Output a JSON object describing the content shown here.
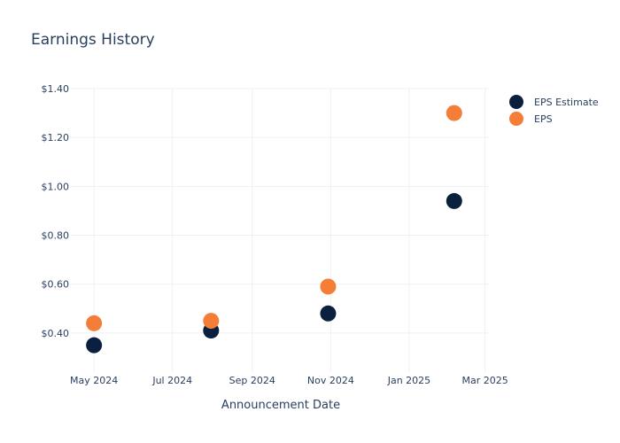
{
  "chart_data": {
    "type": "scatter",
    "title": "Earnings History",
    "xlabel": "Announcement Date",
    "ylabel": "",
    "x_ticks": [
      "May 2024",
      "Jul 2024",
      "Sep 2024",
      "Nov 2024",
      "Jan 2025",
      "Mar 2025"
    ],
    "y_ticks": [
      "$0.40",
      "$0.60",
      "$0.80",
      "$1.00",
      "$1.20",
      "$1.40"
    ],
    "ylim": [
      0.24,
      1.4
    ],
    "xlim": [
      "2024-04-13",
      "2025-03-04"
    ],
    "grid": true,
    "legend_position": "top-right",
    "x": [
      "2024-05-01",
      "2024-07-31",
      "2024-10-30",
      "2025-02-05"
    ],
    "series": [
      {
        "name": "EPS Estimate",
        "color": "#0b1f3f",
        "values": [
          0.35,
          0.41,
          0.48,
          0.94
        ]
      },
      {
        "name": "EPS",
        "color": "#f47d37",
        "values": [
          0.44,
          0.45,
          0.59,
          1.3
        ]
      }
    ]
  }
}
